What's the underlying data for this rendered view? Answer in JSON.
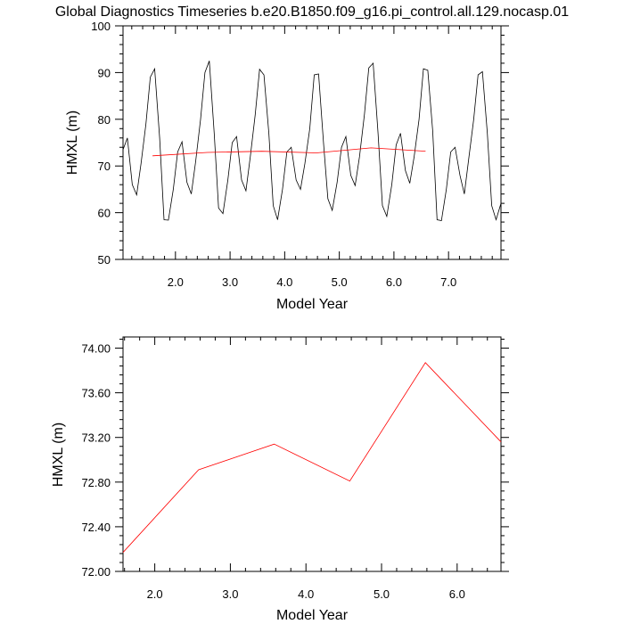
{
  "page_title": "Global Diagnostics Timeseries b.e20.B1850.f09_g16.pi_control.all.129.nocasp.01",
  "chart_data": [
    {
      "type": "line",
      "xlabel": "Model Year",
      "ylabel": "HMXL (m)",
      "xlim": [
        1.04,
        7.96
      ],
      "ylim": [
        50,
        100
      ],
      "x_ticks": [
        2.0,
        3.0,
        4.0,
        5.0,
        6.0,
        7.0
      ],
      "x_tick_labels": [
        "2.0",
        "3.0",
        "4.0",
        "5.0",
        "6.0",
        "7.0"
      ],
      "y_ticks": [
        50,
        60,
        70,
        80,
        90,
        100
      ],
      "y_tick_labels": [
        "50",
        "60",
        "70",
        "80",
        "90",
        "100"
      ],
      "series": [
        {
          "color": "#000000",
          "x": [
            1.04,
            1.12,
            1.21,
            1.29,
            1.37,
            1.46,
            1.54,
            1.62,
            1.71,
            1.79,
            1.87,
            1.96,
            2.04,
            2.12,
            2.21,
            2.29,
            2.37,
            2.46,
            2.54,
            2.62,
            2.71,
            2.79,
            2.87,
            2.96,
            3.04,
            3.12,
            3.21,
            3.29,
            3.37,
            3.46,
            3.54,
            3.62,
            3.71,
            3.79,
            3.87,
            3.96,
            4.04,
            4.12,
            4.21,
            4.29,
            4.37,
            4.46,
            4.54,
            4.62,
            4.71,
            4.79,
            4.87,
            4.96,
            5.04,
            5.12,
            5.21,
            5.29,
            5.37,
            5.46,
            5.54,
            5.62,
            5.71,
            5.79,
            5.87,
            5.96,
            6.04,
            6.12,
            6.21,
            6.29,
            6.37,
            6.46,
            6.54,
            6.62,
            6.71,
            6.79,
            6.87,
            6.96,
            7.04,
            7.12,
            7.21,
            7.29,
            7.37,
            7.46,
            7.54,
            7.62,
            7.71,
            7.79,
            7.87,
            7.96
          ],
          "values": [
            73.5,
            76,
            66,
            63.8,
            70.5,
            79,
            89,
            90.8,
            76,
            58.5,
            58.4,
            65,
            73,
            75.2,
            66.5,
            64,
            71,
            80,
            90,
            92.5,
            77,
            61,
            59.8,
            67,
            75,
            76.3,
            67,
            64.7,
            72,
            81,
            90.7,
            89.5,
            77,
            61.5,
            58.5,
            65,
            73,
            74,
            67,
            65,
            70.5,
            78,
            89.5,
            89.7,
            75,
            63,
            60.5,
            66.5,
            74,
            76.3,
            68,
            65.8,
            72,
            81,
            91,
            92,
            77,
            61.5,
            59.2,
            66,
            74.5,
            77,
            69,
            66.3,
            72,
            80,
            90.8,
            90.5,
            77.5,
            58.5,
            58.3,
            65,
            73,
            74,
            68,
            64,
            71.5,
            80,
            89.5,
            90.2,
            77,
            61.5,
            58.5,
            62
          ]
        },
        {
          "color": "#ff0000",
          "x": [
            1.58,
            2.58,
            3.58,
            4.58,
            5.58,
            6.58
          ],
          "values": [
            72.17,
            72.91,
            73.14,
            72.81,
            73.87,
            73.16
          ]
        }
      ]
    },
    {
      "type": "line",
      "xlabel": "Model Year",
      "ylabel": "HMXL (m)",
      "xlim": [
        1.58,
        6.58
      ],
      "ylim": [
        72.0,
        74.1
      ],
      "x_ticks": [
        2.0,
        3.0,
        4.0,
        5.0,
        6.0
      ],
      "x_tick_labels": [
        "2.0",
        "3.0",
        "4.0",
        "5.0",
        "6.0"
      ],
      "y_ticks": [
        72.0,
        72.4,
        72.8,
        73.2,
        73.6,
        74.0
      ],
      "y_tick_labels": [
        "72.00",
        "72.40",
        "72.80",
        "73.20",
        "73.60",
        "74.00"
      ],
      "series": [
        {
          "color": "#ff0000",
          "x": [
            1.58,
            2.58,
            3.58,
            4.58,
            5.58,
            6.58
          ],
          "values": [
            72.17,
            72.91,
            73.14,
            72.81,
            73.87,
            73.16
          ]
        }
      ]
    }
  ]
}
